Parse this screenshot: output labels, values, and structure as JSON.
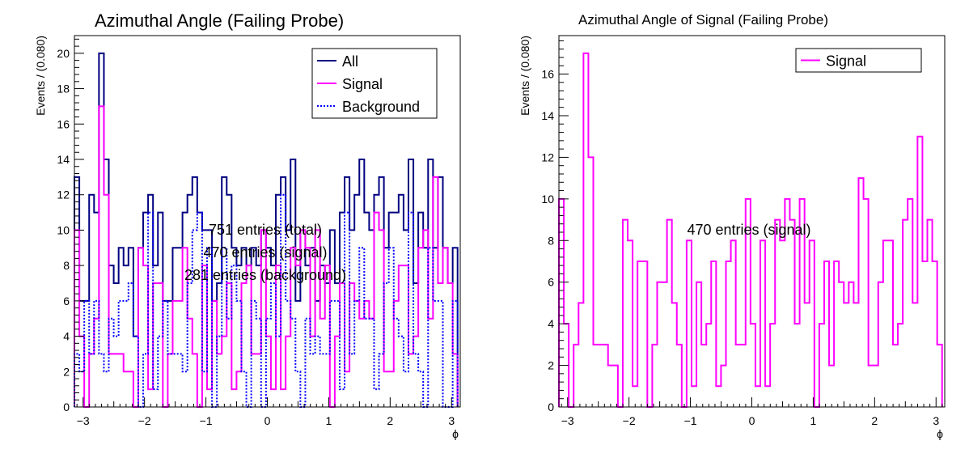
{
  "colors": {
    "all": "#000080",
    "signal": "#ff00ff",
    "background": "#0000ff",
    "axis": "#000000"
  },
  "chart_data": [
    {
      "type": "histogram-step",
      "title": "Azimuthal Angle (Failing Probe)",
      "xlabel": "ϕ",
      "ylabel": "Events / (0.080)",
      "xlim": [
        -3.14159,
        3.14159
      ],
      "ylim": [
        0,
        21
      ],
      "bin_width": 0.08,
      "x_ticks": [
        -3,
        -2,
        -1,
        0,
        1,
        2,
        3
      ],
      "y_ticks": [
        0,
        2,
        4,
        6,
        8,
        10,
        12,
        14,
        16,
        18,
        20
      ],
      "legend": {
        "position": "top-right",
        "entries": [
          "All",
          "Signal",
          "Background"
        ]
      },
      "annotations": [
        "751 entries (total)",
        "470 entries (signal)",
        "281 entries (background)"
      ],
      "series": [
        {
          "name": "All",
          "style": "solid",
          "values": [
            13,
            6,
            6,
            12,
            11,
            20,
            14,
            8,
            7,
            9,
            8,
            9,
            4,
            9,
            11,
            12,
            8,
            11,
            6,
            6,
            9,
            9,
            11,
            12,
            13,
            11,
            10,
            10,
            6,
            7,
            13,
            12,
            9,
            8,
            9,
            8,
            9,
            8,
            10,
            9,
            8,
            12,
            13,
            10,
            14,
            6,
            10,
            8,
            9,
            6,
            8,
            7,
            10,
            7,
            11,
            13,
            10,
            12,
            14,
            11,
            10,
            12,
            13,
            9,
            11,
            11,
            12,
            10,
            14,
            7,
            11,
            9,
            14,
            9,
            13,
            9,
            7,
            9
          ]
        },
        {
          "name": "Signal",
          "style": "solid",
          "values": [
            10,
            4,
            0,
            3,
            5,
            17,
            12,
            3,
            3,
            3,
            2,
            2,
            0,
            9,
            8,
            1,
            7,
            7,
            0,
            3,
            6,
            6,
            9,
            5,
            3,
            0,
            8,
            1,
            6,
            3,
            4,
            7,
            1,
            2,
            7,
            8,
            3,
            3,
            10,
            4,
            1,
            8,
            1,
            4,
            9,
            8,
            10,
            9,
            4,
            10,
            5,
            8,
            0,
            4,
            7,
            2,
            7,
            6,
            5,
            6,
            5,
            11,
            10,
            2,
            2,
            6,
            8,
            8,
            3,
            4,
            9,
            10,
            5,
            13,
            7,
            9,
            7,
            3
          ]
        },
        {
          "name": "Background",
          "style": "dotted",
          "values": [
            3,
            2,
            6,
            3,
            6,
            3,
            2,
            5,
            4,
            6,
            6,
            7,
            4,
            0,
            3,
            11,
            1,
            4,
            6,
            3,
            3,
            3,
            2,
            7,
            10,
            11,
            2,
            9,
            0,
            4,
            9,
            5,
            8,
            6,
            2,
            0,
            6,
            5,
            0,
            5,
            7,
            4,
            12,
            6,
            5,
            2,
            0,
            5,
            3,
            4,
            3,
            3,
            6,
            6,
            1,
            11,
            3,
            6,
            9,
            5,
            5,
            1,
            3,
            7,
            9,
            5,
            4,
            2,
            11,
            3,
            2,
            0,
            9,
            6,
            6,
            0,
            0,
            6
          ]
        }
      ]
    },
    {
      "type": "histogram-step",
      "title": "Azimuthal Angle of Signal (Failing Probe)",
      "xlabel": "ϕ",
      "ylabel": "Events / (0.080)",
      "xlim": [
        -3.14159,
        3.14159
      ],
      "ylim": [
        0,
        17.85
      ],
      "bin_width": 0.08,
      "x_ticks": [
        -3,
        -2,
        -1,
        0,
        1,
        2,
        3
      ],
      "y_ticks": [
        0,
        2,
        4,
        6,
        8,
        10,
        12,
        14,
        16
      ],
      "legend": {
        "position": "top-right",
        "entries": [
          "Signal"
        ]
      },
      "annotations": [
        "470 entries (signal)"
      ],
      "series": [
        {
          "name": "Signal",
          "style": "solid",
          "values": [
            10,
            4,
            0,
            3,
            5,
            17,
            12,
            3,
            3,
            3,
            2,
            2,
            0,
            9,
            8,
            1,
            7,
            7,
            0,
            3,
            6,
            6,
            9,
            5,
            3,
            0,
            8,
            1,
            6,
            3,
            4,
            7,
            1,
            2,
            7,
            8,
            3,
            3,
            10,
            4,
            1,
            8,
            1,
            4,
            9,
            8,
            10,
            9,
            4,
            10,
            5,
            8,
            0,
            4,
            7,
            2,
            7,
            6,
            5,
            6,
            5,
            11,
            10,
            2,
            2,
            6,
            8,
            8,
            3,
            4,
            9,
            10,
            5,
            13,
            7,
            9,
            7,
            3
          ]
        }
      ]
    }
  ]
}
